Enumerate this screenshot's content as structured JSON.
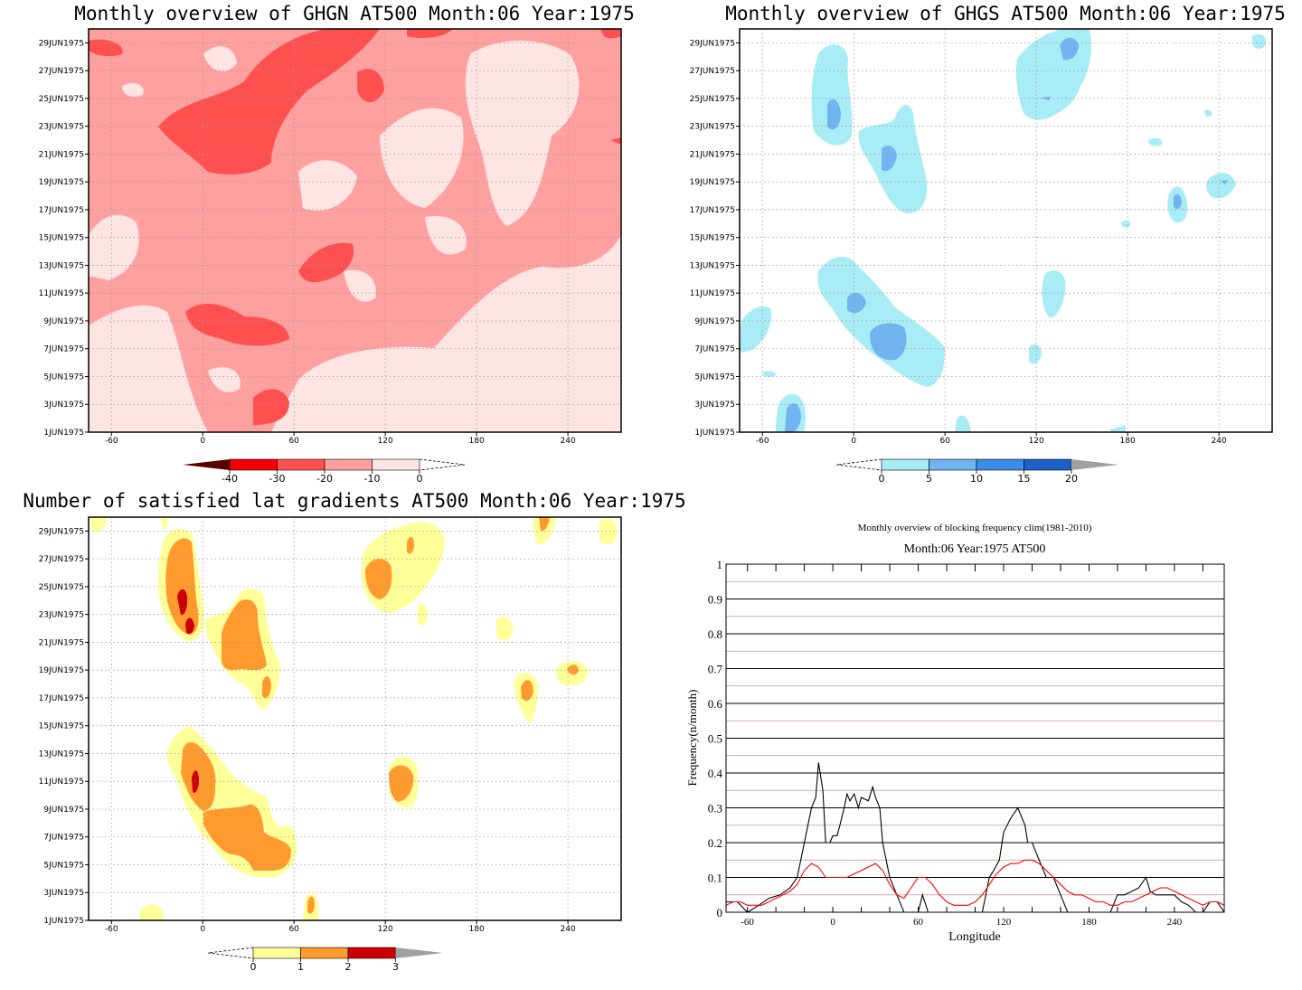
{
  "panels": {
    "ghgn": {
      "title": "Monthly overview of GHGN AT500 Month:06 Year:1975",
      "colorbar": {
        "ticks": [
          "-40",
          "-30",
          "-20",
          "-10",
          "0"
        ],
        "colors": [
          "#5a0000",
          "#f40000",
          "#ff5050",
          "#ffa0a0",
          "#ffe4e4"
        ]
      }
    },
    "ghgs": {
      "title": "Monthly overview of GHGS AT500 Month:06 Year:1975",
      "colorbar": {
        "ticks": [
          "0",
          "5",
          "10",
          "15",
          "20"
        ],
        "colors": [
          "#a8ecf6",
          "#72b4f0",
          "#3c8ce8",
          "#1e60c8",
          "#a0a0a0"
        ]
      }
    },
    "grad": {
      "title": "Number of satisfied lat gradients AT500 Month:06 Year:1975",
      "colorbar": {
        "ticks": [
          "0",
          "1",
          "2",
          "3"
        ],
        "colors": [
          "#ffff99",
          "#ff9a2e",
          "#cc0000",
          "#a0a0a0"
        ]
      }
    },
    "freq": {
      "title_line1": "Monthly overview of blocking frequency clim(1981-2010)",
      "title_line2": "Month:06 Year:1975  AT500",
      "ylabel": "Frequency(n/month)",
      "xlabel": "Longitude"
    }
  },
  "axes": {
    "date_ticks": [
      "1JUN1975",
      "3JUN1975",
      "5JUN1975",
      "7JUN1975",
      "9JUN1975",
      "11JUN1975",
      "13JUN1975",
      "15JUN1975",
      "17JUN1975",
      "19JUN1975",
      "21JUN1975",
      "23JUN1975",
      "25JUN1975",
      "27JUN1975",
      "29JUN1975"
    ],
    "lon_ticks": [
      "-60",
      "0",
      "60",
      "120",
      "180",
      "240"
    ],
    "lon_values": [
      -60,
      0,
      60,
      120,
      180,
      240
    ],
    "lon_range": [
      -75,
      275
    ]
  },
  "chart_data": [
    {
      "type": "heatmap",
      "title": "Monthly overview of GHGN AT500 Month:06 Year:1975",
      "x_range": [
        -75,
        275
      ],
      "y_range": [
        "1JUN1975",
        "30JUN1975"
      ],
      "levels": [
        -40,
        -30,
        -20,
        -10,
        0
      ],
      "colors": [
        "#5a0000",
        "#f40000",
        "#ff5050",
        "#ffa0a0",
        "#ffe4e4"
      ]
    },
    {
      "type": "heatmap",
      "title": "Monthly overview of GHGS AT500 Month:06 Year:1975",
      "x_range": [
        -75,
        275
      ],
      "y_range": [
        "1JUN1975",
        "30JUN1975"
      ],
      "levels": [
        0,
        5,
        10,
        15,
        20
      ],
      "colors": [
        "#a8ecf6",
        "#72b4f0",
        "#3c8ce8",
        "#1e60c8",
        "#a0a0a0"
      ]
    },
    {
      "type": "heatmap",
      "title": "Number of satisfied lat gradients AT500 Month:06 Year:1975",
      "x_range": [
        -75,
        275
      ],
      "y_range": [
        "1JUN1975",
        "30JUN1975"
      ],
      "levels": [
        0,
        1,
        2,
        3
      ],
      "colors": [
        "#ffff99",
        "#ff9a2e",
        "#cc0000",
        "#a0a0a0"
      ]
    },
    {
      "type": "line",
      "title": "Monthly overview of blocking frequency clim(1981-2010)",
      "subtitle": "Month:06 Year:1975  AT500",
      "xlabel": "Longitude",
      "ylabel": "Frequency(n/month)",
      "xlim": [
        -75,
        275
      ],
      "ylim": [
        0,
        1
      ],
      "x_ticks": [
        -60,
        0,
        60,
        120,
        180,
        240
      ],
      "y_ticks": [
        "0",
        "0.1",
        "0.2",
        "0.3",
        "0.4",
        "0.5",
        "0.6",
        "0.7",
        "0.8",
        "0.9",
        "1"
      ],
      "series": [
        {
          "color": "#000000",
          "x": [
            -75,
            -67,
            -60,
            -52,
            -45,
            -37,
            -30,
            -25,
            -20,
            -15,
            -12,
            -10,
            -7,
            -5,
            -2,
            0,
            3,
            5,
            8,
            10,
            12,
            15,
            18,
            20,
            25,
            28,
            30,
            33,
            35,
            40,
            45,
            50,
            55,
            60,
            63,
            67,
            72,
            75,
            80,
            85,
            90,
            95,
            100,
            105,
            110,
            113,
            117,
            120,
            125,
            130,
            135,
            137,
            140,
            145,
            150,
            155,
            160,
            165,
            170,
            175,
            180,
            185,
            190,
            195,
            200,
            205,
            210,
            215,
            220,
            223,
            227,
            232,
            240,
            245,
            250,
            255,
            260,
            265,
            270,
            275
          ],
          "y": [
            0.03,
            0.03,
            0.0,
            0.02,
            0.04,
            0.05,
            0.07,
            0.1,
            0.2,
            0.3,
            0.33,
            0.43,
            0.35,
            0.2,
            0.2,
            0.22,
            0.22,
            0.25,
            0.3,
            0.34,
            0.32,
            0.34,
            0.3,
            0.33,
            0.32,
            0.36,
            0.33,
            0.3,
            0.2,
            0.1,
            0.05,
            0.0,
            0.0,
            0.0,
            0.05,
            0.0,
            0.0,
            0.0,
            0.0,
            0.0,
            0.0,
            0.0,
            0.0,
            0.0,
            0.1,
            0.12,
            0.15,
            0.23,
            0.27,
            0.3,
            0.25,
            0.2,
            0.2,
            0.15,
            0.1,
            0.1,
            0.05,
            0.0,
            0.0,
            0.0,
            0.0,
            0.0,
            0.0,
            0.0,
            0.05,
            0.05,
            0.06,
            0.07,
            0.1,
            0.06,
            0.05,
            0.05,
            0.05,
            0.03,
            0.02,
            0.0,
            0.0,
            0.03,
            0.03,
            0.0
          ]
        },
        {
          "color": "#ff0000",
          "x": [
            -75,
            -70,
            -65,
            -60,
            -55,
            -50,
            -45,
            -40,
            -35,
            -30,
            -25,
            -20,
            -15,
            -10,
            -5,
            0,
            5,
            10,
            15,
            20,
            25,
            30,
            35,
            40,
            45,
            50,
            55,
            60,
            65,
            70,
            75,
            80,
            85,
            90,
            95,
            100,
            105,
            110,
            115,
            120,
            125,
            130,
            135,
            140,
            145,
            150,
            155,
            160,
            165,
            170,
            175,
            180,
            185,
            190,
            195,
            200,
            205,
            210,
            215,
            220,
            225,
            230,
            235,
            240,
            245,
            250,
            255,
            260,
            265,
            270,
            275
          ],
          "y": [
            0.02,
            0.03,
            0.03,
            0.02,
            0.02,
            0.02,
            0.03,
            0.04,
            0.05,
            0.06,
            0.08,
            0.12,
            0.14,
            0.13,
            0.1,
            0.1,
            0.1,
            0.1,
            0.11,
            0.12,
            0.13,
            0.14,
            0.12,
            0.08,
            0.05,
            0.04,
            0.07,
            0.1,
            0.1,
            0.08,
            0.05,
            0.03,
            0.02,
            0.02,
            0.02,
            0.03,
            0.05,
            0.08,
            0.11,
            0.13,
            0.14,
            0.14,
            0.15,
            0.15,
            0.14,
            0.12,
            0.1,
            0.08,
            0.06,
            0.05,
            0.05,
            0.04,
            0.03,
            0.03,
            0.02,
            0.02,
            0.03,
            0.03,
            0.04,
            0.05,
            0.06,
            0.07,
            0.07,
            0.06,
            0.05,
            0.04,
            0.03,
            0.02,
            0.03,
            0.03,
            0.02
          ]
        }
      ]
    }
  ]
}
